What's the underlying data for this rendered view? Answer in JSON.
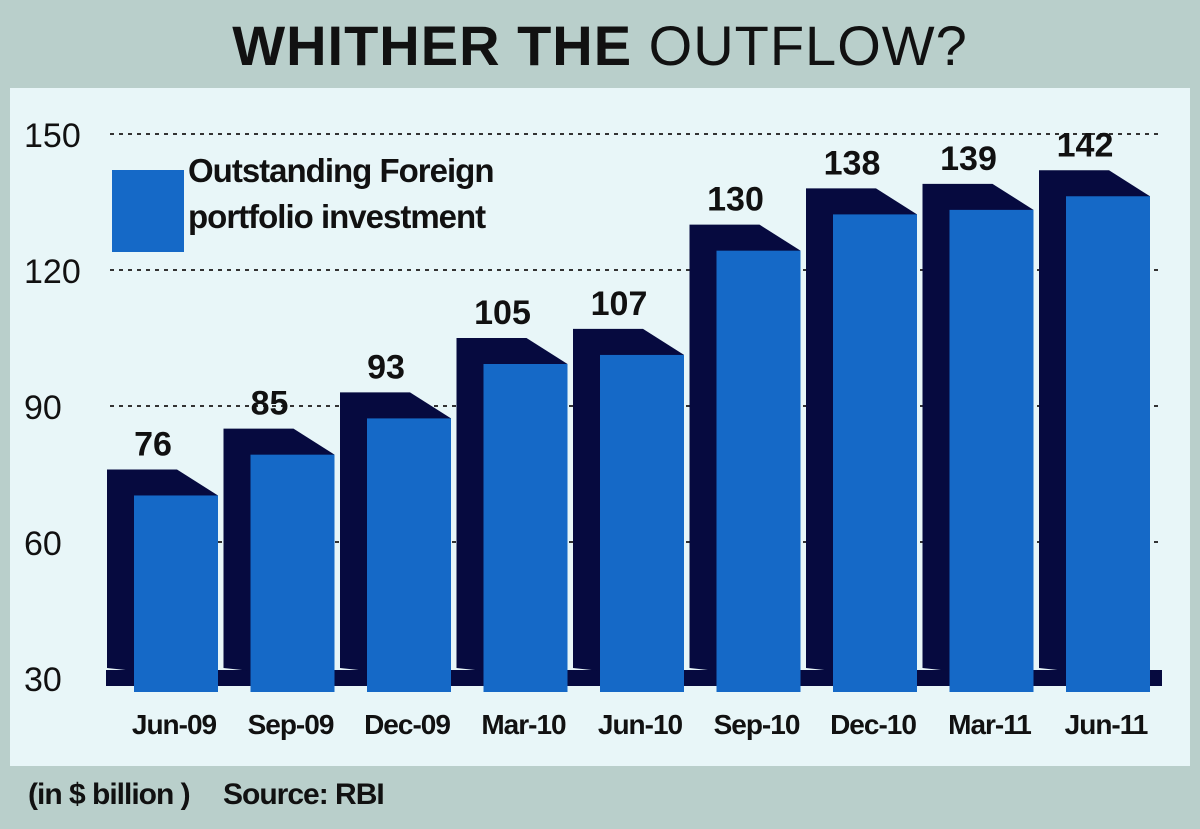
{
  "title": {
    "bold": "WHITHER THE",
    "light": "OUTFLOW?"
  },
  "footer": {
    "unit": "(in $ billion )",
    "source": "Source: RBI"
  },
  "colors": {
    "bar_front": "#1569c7",
    "bar_side": "#060a3f",
    "background": "#b9cfcb",
    "panel": "#e8f6f8"
  },
  "chart_data": {
    "type": "bar",
    "categories": [
      "Jun-09",
      "Sep-09",
      "Dec-09",
      "Mar-10",
      "Jun-10",
      "Sep-10",
      "Dec-10",
      "Mar-11",
      "Jun-11"
    ],
    "series": [
      {
        "name": "Outstanding Foreign portfolio investment",
        "values": [
          76,
          85,
          93,
          105,
          107,
          130,
          138,
          139,
          142
        ]
      }
    ],
    "data_labels": [
      "76",
      "85",
      "93",
      "105",
      "107",
      "130",
      "138",
      "139",
      "142"
    ],
    "legend_lines": [
      "Outstanding Foreign",
      "portfolio investment"
    ],
    "ylim": [
      30,
      150
    ],
    "yticks": [
      30,
      60,
      90,
      120,
      150
    ],
    "grid": true,
    "legend_position": "top-left",
    "xlabel": "",
    "ylabel": ""
  }
}
